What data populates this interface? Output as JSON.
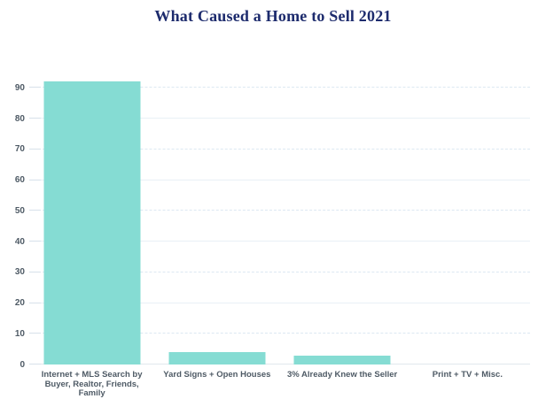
{
  "page": {
    "background": "#ffffff"
  },
  "chart_data": {
    "type": "bar",
    "title": "What Caused a Home to Sell 2021",
    "categories": [
      "Internet + MLS Search by Buyer, Realtor, Friends, Family",
      "Yard Signs + Open Houses",
      "3% Already Knew the Seller",
      "Print + TV + Misc."
    ],
    "values": [
      92,
      4,
      3,
      0
    ],
    "xlabel": "",
    "ylabel": "",
    "ylim": [
      0,
      95
    ],
    "yticks": [
      0,
      10,
      20,
      30,
      40,
      50,
      60,
      70,
      80,
      90
    ],
    "grid": true,
    "legend": false,
    "colors": {
      "bar": "#85dcd3",
      "title": "#1d2b6d",
      "axis_text": "#4e5a65",
      "grid_solid": "#e9f0f6",
      "grid_dashed": "#dce8f2",
      "grid_zero": "#e0e7ed",
      "tick": "#d7e1ea"
    }
  }
}
